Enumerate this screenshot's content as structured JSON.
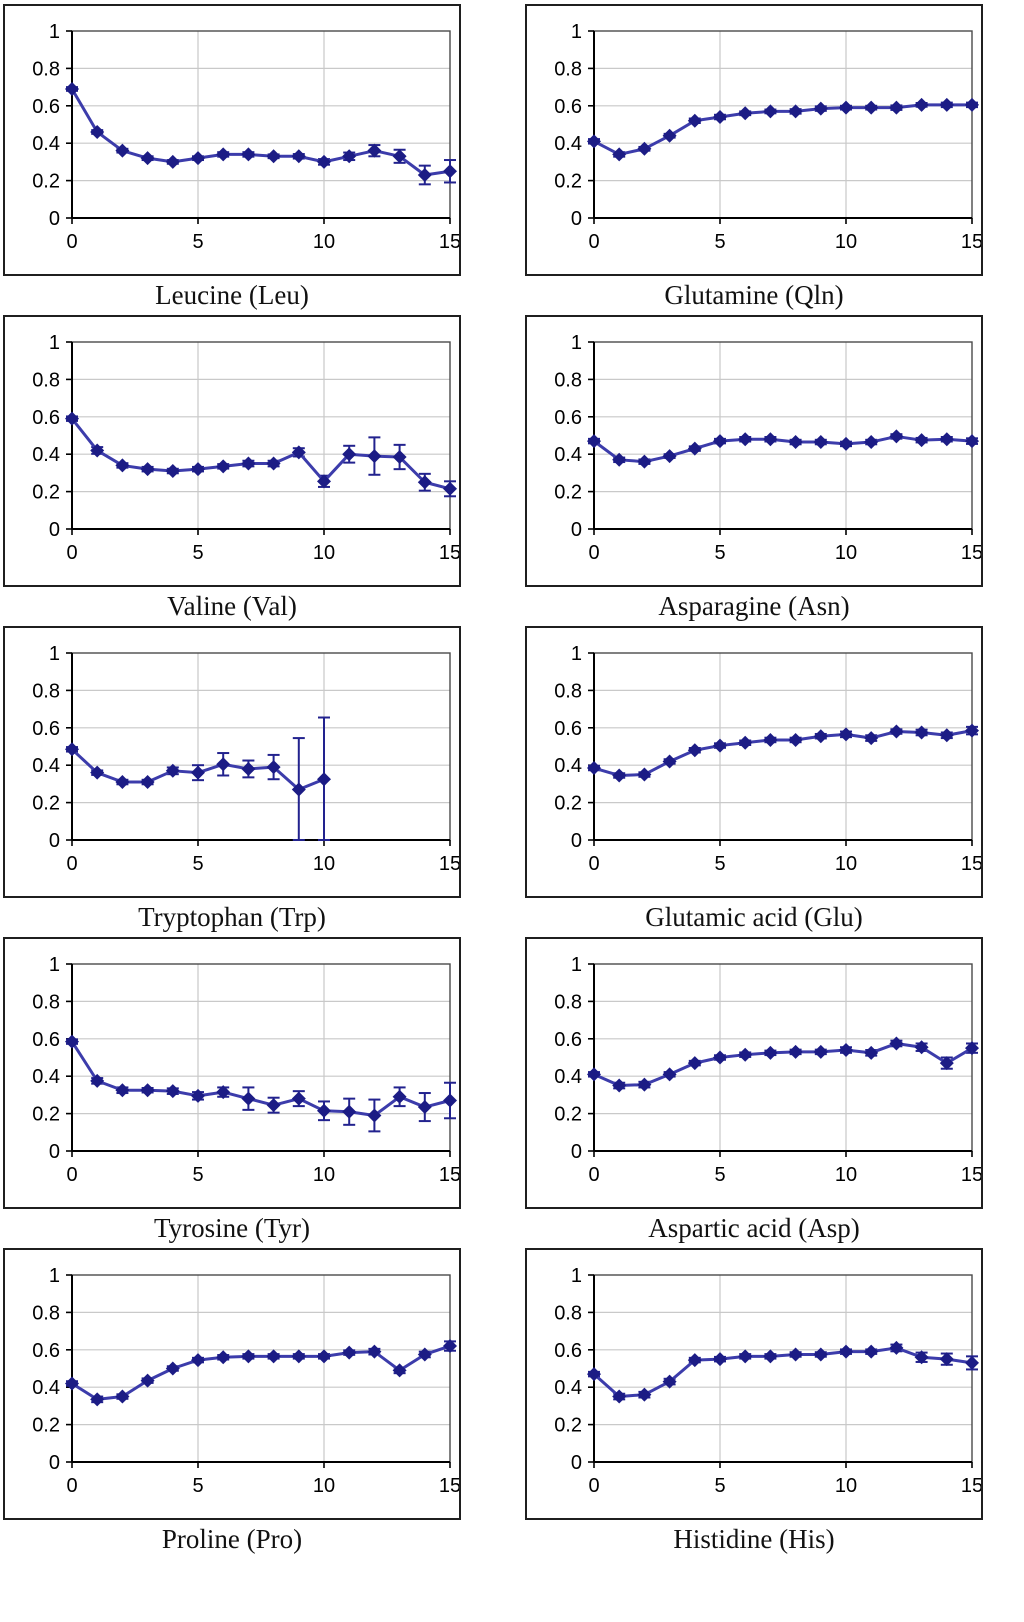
{
  "page": {
    "background": "#ffffff"
  },
  "colors": {
    "series_line": "#3c3cab",
    "marker_fill": "#1c1c85",
    "error_bar": "#22228e",
    "gridline": "#c9c9c9",
    "plot_border": "#4a4a4a",
    "axis_line": "#000000",
    "tick_label": "#000000",
    "panel_border": "#1f1f1f"
  },
  "chart_data": [
    {
      "type": "line",
      "title": "Leucine (Leu)",
      "x": [
        0,
        1,
        2,
        3,
        4,
        5,
        6,
        7,
        8,
        9,
        10,
        11,
        12,
        13,
        14,
        15
      ],
      "values": [
        0.69,
        0.46,
        0.36,
        0.32,
        0.3,
        0.32,
        0.34,
        0.34,
        0.33,
        0.33,
        0.3,
        0.33,
        0.36,
        0.33,
        0.23,
        0.25
      ],
      "errors": [
        0.01,
        0.01,
        0.01,
        0.01,
        0.01,
        0.01,
        0.012,
        0.012,
        0.01,
        0.012,
        0.015,
        0.02,
        0.03,
        0.035,
        0.05,
        0.06
      ],
      "xlim": [
        0,
        15
      ],
      "ylim": [
        0,
        1
      ],
      "xticks": [
        0,
        5,
        10,
        15
      ],
      "yticks": [
        0,
        0.2,
        0.4,
        0.6,
        0.8,
        1
      ],
      "xgrid": [
        5,
        10
      ],
      "ygrid": [
        0.2,
        0.4,
        0.6,
        0.8
      ],
      "legend": "none",
      "grid": true
    },
    {
      "type": "line",
      "title": "Glutamine (Qln)",
      "x": [
        0,
        1,
        2,
        3,
        4,
        5,
        6,
        7,
        8,
        9,
        10,
        11,
        12,
        13,
        14,
        15
      ],
      "values": [
        0.41,
        0.34,
        0.37,
        0.44,
        0.52,
        0.54,
        0.56,
        0.57,
        0.57,
        0.585,
        0.59,
        0.59,
        0.59,
        0.605,
        0.605,
        0.605
      ],
      "errors": [
        0.012,
        0.012,
        0.01,
        0.01,
        0.012,
        0.012,
        0.01,
        0.01,
        0.012,
        0.012,
        0.01,
        0.01,
        0.012,
        0.01,
        0.012,
        0.012
      ],
      "xlim": [
        0,
        15
      ],
      "ylim": [
        0,
        1
      ],
      "xticks": [
        0,
        5,
        10,
        15
      ],
      "yticks": [
        0,
        0.2,
        0.4,
        0.6,
        0.8,
        1
      ],
      "xgrid": [
        5,
        10
      ],
      "ygrid": [
        0.2,
        0.4,
        0.6,
        0.8
      ],
      "legend": "none",
      "grid": true
    },
    {
      "type": "line",
      "title": "Valine (Val)",
      "x": [
        0,
        1,
        2,
        3,
        4,
        5,
        6,
        7,
        8,
        9,
        10,
        11,
        12,
        13,
        14,
        15
      ],
      "values": [
        0.59,
        0.42,
        0.34,
        0.32,
        0.31,
        0.32,
        0.335,
        0.35,
        0.35,
        0.41,
        0.255,
        0.4,
        0.39,
        0.385,
        0.25,
        0.215
      ],
      "errors": [
        0.012,
        0.018,
        0.012,
        0.012,
        0.012,
        0.012,
        0.012,
        0.015,
        0.015,
        0.022,
        0.03,
        0.045,
        0.1,
        0.065,
        0.045,
        0.04
      ],
      "xlim": [
        0,
        15
      ],
      "ylim": [
        0,
        1
      ],
      "xticks": [
        0,
        5,
        10,
        15
      ],
      "yticks": [
        0,
        0.2,
        0.4,
        0.6,
        0.8,
        1
      ],
      "xgrid": [
        5,
        10
      ],
      "ygrid": [
        0.2,
        0.4,
        0.6,
        0.8
      ],
      "legend": "none",
      "grid": true
    },
    {
      "type": "line",
      "title": "Asparagine (Asn)",
      "x": [
        0,
        1,
        2,
        3,
        4,
        5,
        6,
        7,
        8,
        9,
        10,
        11,
        12,
        13,
        14,
        15
      ],
      "values": [
        0.47,
        0.37,
        0.36,
        0.39,
        0.43,
        0.47,
        0.48,
        0.48,
        0.465,
        0.465,
        0.455,
        0.465,
        0.495,
        0.475,
        0.48,
        0.47
      ],
      "errors": [
        0.012,
        0.012,
        0.012,
        0.01,
        0.012,
        0.012,
        0.012,
        0.012,
        0.012,
        0.012,
        0.012,
        0.012,
        0.012,
        0.012,
        0.012,
        0.015
      ],
      "xlim": [
        0,
        15
      ],
      "ylim": [
        0,
        1
      ],
      "xticks": [
        0,
        5,
        10,
        15
      ],
      "yticks": [
        0,
        0.2,
        0.4,
        0.6,
        0.8,
        1
      ],
      "xgrid": [
        5,
        10
      ],
      "ygrid": [
        0.2,
        0.4,
        0.6,
        0.8
      ],
      "legend": "none",
      "grid": true
    },
    {
      "type": "line",
      "title": "Tryptophan (Trp)",
      "x": [
        0,
        1,
        2,
        3,
        4,
        5,
        6,
        7,
        8,
        9,
        10
      ],
      "values": [
        0.485,
        0.36,
        0.31,
        0.31,
        0.37,
        0.36,
        0.405,
        0.38,
        0.39,
        0.27,
        0.325
      ],
      "errors": [
        0.012,
        0.012,
        0.012,
        0.012,
        0.018,
        0.04,
        0.06,
        0.045,
        0.065,
        0.275,
        0.33
      ],
      "xlim": [
        0,
        15
      ],
      "ylim": [
        0,
        1
      ],
      "xticks": [
        0,
        5,
        10,
        15
      ],
      "yticks": [
        0,
        0.2,
        0.4,
        0.6,
        0.8,
        1
      ],
      "xgrid": [
        5,
        10
      ],
      "ygrid": [
        0.2,
        0.4,
        0.6,
        0.8
      ],
      "legend": "none",
      "grid": true
    },
    {
      "type": "line",
      "title": "Glutamic acid (Glu)",
      "x": [
        0,
        1,
        2,
        3,
        4,
        5,
        6,
        7,
        8,
        9,
        10,
        11,
        12,
        13,
        14,
        15
      ],
      "values": [
        0.385,
        0.345,
        0.35,
        0.42,
        0.48,
        0.505,
        0.52,
        0.535,
        0.535,
        0.555,
        0.565,
        0.545,
        0.58,
        0.575,
        0.56,
        0.585
      ],
      "errors": [
        0.012,
        0.012,
        0.012,
        0.012,
        0.012,
        0.012,
        0.012,
        0.012,
        0.012,
        0.012,
        0.015,
        0.015,
        0.012,
        0.015,
        0.015,
        0.02
      ],
      "xlim": [
        0,
        15
      ],
      "ylim": [
        0,
        1
      ],
      "xticks": [
        0,
        5,
        10,
        15
      ],
      "yticks": [
        0,
        0.2,
        0.4,
        0.6,
        0.8,
        1
      ],
      "xgrid": [
        5,
        10
      ],
      "ygrid": [
        0.2,
        0.4,
        0.6,
        0.8
      ],
      "legend": "none",
      "grid": true
    },
    {
      "type": "line",
      "title": "Tyrosine (Tyr)",
      "x": [
        0,
        1,
        2,
        3,
        4,
        5,
        6,
        7,
        8,
        9,
        10,
        11,
        12,
        13,
        14,
        15
      ],
      "values": [
        0.585,
        0.375,
        0.325,
        0.325,
        0.32,
        0.295,
        0.315,
        0.28,
        0.245,
        0.28,
        0.215,
        0.21,
        0.19,
        0.29,
        0.235,
        0.27
      ],
      "errors": [
        0.012,
        0.015,
        0.015,
        0.012,
        0.015,
        0.02,
        0.025,
        0.06,
        0.04,
        0.04,
        0.05,
        0.07,
        0.085,
        0.05,
        0.075,
        0.095
      ],
      "xlim": [
        0,
        15
      ],
      "ylim": [
        0,
        1
      ],
      "xticks": [
        0,
        5,
        10,
        15
      ],
      "yticks": [
        0,
        0.2,
        0.4,
        0.6,
        0.8,
        1
      ],
      "xgrid": [
        5,
        10
      ],
      "ygrid": [
        0.2,
        0.4,
        0.6,
        0.8
      ],
      "legend": "none",
      "grid": true
    },
    {
      "type": "line",
      "title": "Aspartic acid (Asp)",
      "x": [
        0,
        1,
        2,
        3,
        4,
        5,
        6,
        7,
        8,
        9,
        10,
        11,
        12,
        13,
        14,
        15
      ],
      "values": [
        0.41,
        0.35,
        0.355,
        0.41,
        0.47,
        0.5,
        0.515,
        0.525,
        0.53,
        0.53,
        0.54,
        0.525,
        0.575,
        0.555,
        0.47,
        0.55
      ],
      "errors": [
        0.012,
        0.015,
        0.015,
        0.012,
        0.012,
        0.012,
        0.012,
        0.012,
        0.012,
        0.012,
        0.015,
        0.015,
        0.015,
        0.02,
        0.03,
        0.025
      ],
      "xlim": [
        0,
        15
      ],
      "ylim": [
        0,
        1
      ],
      "xticks": [
        0,
        5,
        10,
        15
      ],
      "yticks": [
        0,
        0.2,
        0.4,
        0.6,
        0.8,
        1
      ],
      "xgrid": [
        5,
        10
      ],
      "ygrid": [
        0.2,
        0.4,
        0.6,
        0.8
      ],
      "legend": "none",
      "grid": true
    },
    {
      "type": "line",
      "title": "Proline (Pro)",
      "x": [
        0,
        1,
        2,
        3,
        4,
        5,
        6,
        7,
        8,
        9,
        10,
        11,
        12,
        13,
        14,
        15
      ],
      "values": [
        0.42,
        0.335,
        0.35,
        0.435,
        0.5,
        0.545,
        0.56,
        0.565,
        0.565,
        0.565,
        0.565,
        0.585,
        0.59,
        0.49,
        0.575,
        0.62
      ],
      "errors": [
        0.012,
        0.015,
        0.012,
        0.012,
        0.012,
        0.012,
        0.012,
        0.012,
        0.012,
        0.012,
        0.012,
        0.012,
        0.015,
        0.015,
        0.015,
        0.025
      ],
      "xlim": [
        0,
        15
      ],
      "ylim": [
        0,
        1
      ],
      "xticks": [
        0,
        5,
        10,
        15
      ],
      "yticks": [
        0,
        0.2,
        0.4,
        0.6,
        0.8,
        1
      ],
      "xgrid": [
        5,
        10
      ],
      "ygrid": [
        0.2,
        0.4,
        0.6,
        0.8
      ],
      "legend": "none",
      "grid": true
    },
    {
      "type": "line",
      "title": "Histidine (His)",
      "x": [
        0,
        1,
        2,
        3,
        4,
        5,
        6,
        7,
        8,
        9,
        10,
        11,
        12,
        13,
        14,
        15
      ],
      "values": [
        0.47,
        0.35,
        0.36,
        0.43,
        0.545,
        0.55,
        0.565,
        0.565,
        0.575,
        0.575,
        0.59,
        0.59,
        0.61,
        0.56,
        0.55,
        0.53
      ],
      "errors": [
        0.012,
        0.015,
        0.015,
        0.015,
        0.012,
        0.012,
        0.012,
        0.012,
        0.012,
        0.012,
        0.012,
        0.012,
        0.018,
        0.025,
        0.03,
        0.035
      ],
      "xlim": [
        0,
        15
      ],
      "ylim": [
        0,
        1
      ],
      "xticks": [
        0,
        5,
        10,
        15
      ],
      "yticks": [
        0,
        0.2,
        0.4,
        0.6,
        0.8,
        1
      ],
      "xgrid": [
        5,
        10
      ],
      "ygrid": [
        0.2,
        0.4,
        0.6,
        0.8
      ],
      "legend": "none",
      "grid": true
    }
  ]
}
